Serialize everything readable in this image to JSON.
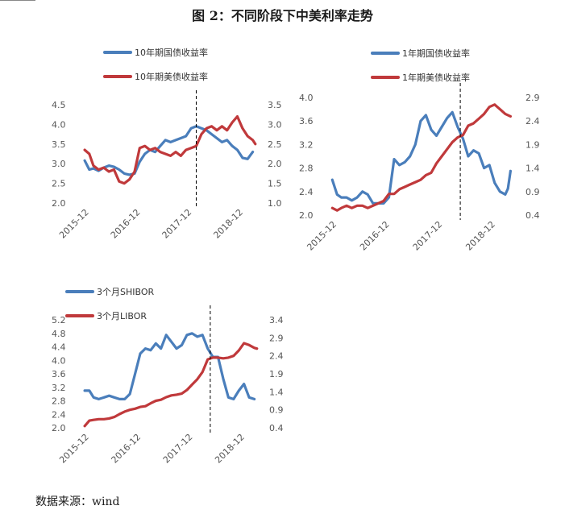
{
  "figure_title": "图 2：不同阶段下中美利率走势",
  "source_note": "数据来源：wind",
  "colors": {
    "blue": "#4a7ebb",
    "red": "#c0393b",
    "axis_text": "#555555",
    "divider": "#000000"
  },
  "chart_data": [
    {
      "type": "line",
      "title": "10年期国债收益率 vs 10年期美债收益率",
      "x_tick_labels": [
        "2015-12",
        "2016-12",
        "2017-12",
        "2018-12"
      ],
      "x_range": [
        2015.75,
        2019.2
      ],
      "x_ticks": [
        2015.917,
        2016.917,
        2017.917,
        2018.917
      ],
      "event_line_x": 2018.0,
      "y_left": {
        "range": [
          2.0,
          4.5
        ],
        "ticks": [
          2.0,
          2.5,
          3.0,
          3.5,
          4.0,
          4.5
        ],
        "tick_labels": [
          "2.0",
          "2.5",
          "3.0",
          "3.5",
          "4.0",
          "4.5"
        ]
      },
      "y_right": {
        "range": [
          1.0,
          3.5
        ],
        "ticks": [
          1.0,
          1.5,
          2.0,
          2.5,
          3.0,
          3.5
        ],
        "tick_labels": [
          "1.0",
          "1.5",
          "2.0",
          "2.5",
          "3.0",
          "3.5"
        ]
      },
      "series": [
        {
          "name": "10年期国债收益率",
          "axis": "left",
          "color": "blue",
          "x": [
            2015.83,
            2015.92,
            2016.0,
            2016.1,
            2016.2,
            2016.3,
            2016.4,
            2016.5,
            2016.6,
            2016.7,
            2016.8,
            2016.9,
            2017.0,
            2017.1,
            2017.2,
            2017.3,
            2017.4,
            2017.5,
            2017.6,
            2017.7,
            2017.8,
            2017.9,
            2018.0,
            2018.1,
            2018.2,
            2018.3,
            2018.4,
            2018.5,
            2018.6,
            2018.7,
            2018.8,
            2018.9,
            2019.0,
            2019.1
          ],
          "values": [
            3.08,
            2.85,
            2.88,
            2.82,
            2.9,
            2.95,
            2.92,
            2.85,
            2.75,
            2.72,
            2.75,
            3.05,
            3.25,
            3.35,
            3.3,
            3.45,
            3.6,
            3.55,
            3.6,
            3.65,
            3.7,
            3.9,
            3.95,
            3.9,
            3.85,
            3.75,
            3.65,
            3.55,
            3.6,
            3.45,
            3.35,
            3.15,
            3.12,
            3.3
          ]
        },
        {
          "name": "10年期美债收益率",
          "axis": "right",
          "color": "red",
          "x": [
            2015.83,
            2015.92,
            2016.0,
            2016.1,
            2016.2,
            2016.3,
            2016.4,
            2016.5,
            2016.6,
            2016.7,
            2016.8,
            2016.9,
            2017.0,
            2017.1,
            2017.2,
            2017.3,
            2017.4,
            2017.5,
            2017.6,
            2017.7,
            2017.8,
            2017.9,
            2018.0,
            2018.1,
            2018.2,
            2018.3,
            2018.4,
            2018.5,
            2018.6,
            2018.7,
            2018.8,
            2018.9,
            2019.0,
            2019.1,
            2019.15
          ],
          "values": [
            2.35,
            2.25,
            1.95,
            1.85,
            1.9,
            1.8,
            1.85,
            1.55,
            1.5,
            1.6,
            1.8,
            2.4,
            2.45,
            2.35,
            2.4,
            2.3,
            2.25,
            2.2,
            2.3,
            2.2,
            2.35,
            2.4,
            2.45,
            2.75,
            2.9,
            2.95,
            2.85,
            2.95,
            2.85,
            3.05,
            3.2,
            2.9,
            2.7,
            2.6,
            2.5
          ]
        }
      ]
    },
    {
      "type": "line",
      "title": "1年期国债收益率 vs 1年期美债收益率",
      "x_tick_labels": [
        "2015-12",
        "2016-12",
        "2017-12",
        "2018-12"
      ],
      "x_range": [
        2015.75,
        2019.3
      ],
      "x_ticks": [
        2015.917,
        2016.917,
        2017.917,
        2018.917
      ],
      "event_line_x": 2018.25,
      "y_left": {
        "range": [
          2.0,
          4.0
        ],
        "ticks": [
          2.0,
          2.4,
          2.8,
          3.2,
          3.6,
          4.0
        ],
        "tick_labels": [
          "2.0",
          "2.4",
          "2.8",
          "3.2",
          "3.6",
          "4.0"
        ]
      },
      "y_right": {
        "range": [
          0.4,
          2.9
        ],
        "ticks": [
          0.4,
          0.9,
          1.4,
          1.9,
          2.4,
          2.9
        ],
        "tick_labels": [
          "0.4",
          "0.9",
          "1.4",
          "1.9",
          "2.4",
          "2.9"
        ]
      },
      "series": [
        {
          "name": "1年期国债收益率",
          "axis": "left",
          "color": "blue",
          "x": [
            2015.83,
            2015.92,
            2016.0,
            2016.1,
            2016.2,
            2016.3,
            2016.4,
            2016.5,
            2016.6,
            2016.7,
            2016.8,
            2016.9,
            2017.0,
            2017.1,
            2017.2,
            2017.3,
            2017.4,
            2017.5,
            2017.6,
            2017.7,
            2017.8,
            2017.9,
            2018.0,
            2018.1,
            2018.2,
            2018.3,
            2018.4,
            2018.5,
            2018.6,
            2018.7,
            2018.8,
            2018.9,
            2019.0,
            2019.1,
            2019.15,
            2019.2
          ],
          "values": [
            2.6,
            2.35,
            2.3,
            2.3,
            2.25,
            2.3,
            2.4,
            2.35,
            2.2,
            2.2,
            2.2,
            2.3,
            2.95,
            2.85,
            2.9,
            3.0,
            3.2,
            3.6,
            3.7,
            3.45,
            3.35,
            3.5,
            3.65,
            3.75,
            3.5,
            3.3,
            3.0,
            3.1,
            3.05,
            2.8,
            2.85,
            2.55,
            2.4,
            2.35,
            2.45,
            2.75
          ]
        },
        {
          "name": "1年期美债收益率",
          "axis": "right",
          "color": "red",
          "x": [
            2015.83,
            2015.92,
            2016.0,
            2016.1,
            2016.2,
            2016.3,
            2016.4,
            2016.5,
            2016.6,
            2016.7,
            2016.8,
            2016.9,
            2017.0,
            2017.1,
            2017.2,
            2017.3,
            2017.4,
            2017.5,
            2017.6,
            2017.7,
            2017.8,
            2017.9,
            2018.0,
            2018.1,
            2018.2,
            2018.3,
            2018.4,
            2018.5,
            2018.6,
            2018.7,
            2018.8,
            2018.9,
            2019.0,
            2019.1,
            2019.2
          ],
          "values": [
            0.55,
            0.5,
            0.55,
            0.6,
            0.55,
            0.6,
            0.6,
            0.55,
            0.6,
            0.65,
            0.7,
            0.85,
            0.85,
            0.95,
            1.0,
            1.05,
            1.1,
            1.15,
            1.25,
            1.3,
            1.5,
            1.65,
            1.8,
            1.95,
            2.05,
            2.1,
            2.3,
            2.35,
            2.45,
            2.55,
            2.7,
            2.75,
            2.65,
            2.55,
            2.5
          ]
        }
      ]
    },
    {
      "type": "line",
      "title": "3个月SHIBOR vs 3个月LIBOR",
      "x_tick_labels": [
        "2015-12",
        "2016-12",
        "2017-12",
        "2018-12"
      ],
      "x_range": [
        2015.75,
        2019.2
      ],
      "x_ticks": [
        2015.917,
        2016.917,
        2017.917,
        2018.917
      ],
      "event_line_x": 2018.25,
      "y_left": {
        "range": [
          2.0,
          5.2
        ],
        "ticks": [
          2.0,
          2.4,
          2.8,
          3.2,
          3.6,
          4.0,
          4.4,
          4.8,
          5.2
        ],
        "tick_labels": [
          "2.0",
          "2.4",
          "2.8",
          "3.2",
          "3.6",
          "4.0",
          "4.4",
          "4.8",
          "5.2"
        ]
      },
      "y_right": {
        "range": [
          0.4,
          3.4
        ],
        "ticks": [
          0.4,
          0.9,
          1.4,
          1.9,
          2.4,
          2.9,
          3.4
        ],
        "tick_labels": [
          "0.4",
          "0.9",
          "1.4",
          "1.9",
          "2.4",
          "2.9",
          "3.4"
        ]
      },
      "series": [
        {
          "name": "3个月SHIBOR",
          "axis": "left",
          "color": "blue",
          "x": [
            2015.83,
            2015.92,
            2016.0,
            2016.1,
            2016.2,
            2016.3,
            2016.4,
            2016.5,
            2016.6,
            2016.7,
            2016.8,
            2016.9,
            2017.0,
            2017.1,
            2017.2,
            2017.3,
            2017.4,
            2017.5,
            2017.6,
            2017.7,
            2017.8,
            2017.9,
            2018.0,
            2018.1,
            2018.2,
            2018.3,
            2018.4,
            2018.5,
            2018.6,
            2018.7,
            2018.8,
            2018.9,
            2019.0,
            2019.1
          ],
          "values": [
            3.1,
            3.1,
            2.9,
            2.85,
            2.9,
            2.95,
            2.9,
            2.85,
            2.85,
            3.0,
            3.6,
            4.2,
            4.35,
            4.3,
            4.5,
            4.35,
            4.75,
            4.55,
            4.35,
            4.45,
            4.75,
            4.8,
            4.7,
            4.75,
            4.35,
            4.1,
            4.1,
            3.45,
            2.9,
            2.85,
            3.1,
            3.3,
            2.9,
            2.85
          ]
        },
        {
          "name": "3个月LIBOR",
          "axis": "right",
          "color": "red",
          "x": [
            2015.83,
            2015.92,
            2016.0,
            2016.1,
            2016.2,
            2016.3,
            2016.4,
            2016.5,
            2016.6,
            2016.7,
            2016.8,
            2016.9,
            2017.0,
            2017.1,
            2017.2,
            2017.3,
            2017.4,
            2017.5,
            2017.6,
            2017.7,
            2017.8,
            2017.9,
            2018.0,
            2018.1,
            2018.2,
            2018.3,
            2018.4,
            2018.5,
            2018.6,
            2018.7,
            2018.8,
            2018.9,
            2019.0,
            2019.1,
            2019.15
          ],
          "values": [
            0.45,
            0.6,
            0.62,
            0.64,
            0.64,
            0.66,
            0.7,
            0.78,
            0.85,
            0.9,
            0.93,
            0.98,
            1.0,
            1.08,
            1.15,
            1.18,
            1.25,
            1.3,
            1.32,
            1.35,
            1.45,
            1.6,
            1.75,
            1.95,
            2.3,
            2.35,
            2.35,
            2.33,
            2.35,
            2.4,
            2.55,
            2.75,
            2.7,
            2.62,
            2.6
          ]
        }
      ]
    }
  ]
}
